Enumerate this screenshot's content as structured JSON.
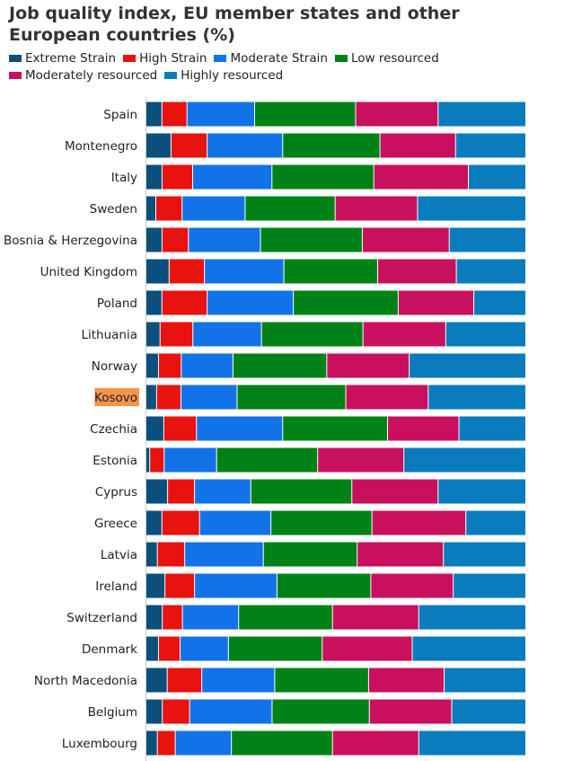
{
  "chart_data": {
    "type": "bar",
    "stacked": true,
    "orientation": "horizontal",
    "normalized_percent": true,
    "title": "Job quality index, EU member states and other European countries (%)",
    "highlighted_category": "Kosovo",
    "highlight_color": "#f7934c",
    "categories": [
      "Spain",
      "Montenegro",
      "Italy",
      "Sweden",
      "Bosnia & Herzegovina",
      "United Kingdom",
      "Poland",
      "Lithuania",
      "Norway",
      "Kosovo",
      "Czechia",
      "Estonia",
      "Cyprus",
      "Greece",
      "Latvia",
      "Ireland",
      "Switzerland",
      "Denmark",
      "North Macedonia",
      "Belgium",
      "Luxembourg"
    ],
    "series": [
      {
        "name": "Extreme Strain",
        "color": "#0b4f7c",
        "values": [
          4.2,
          6.6,
          4.2,
          2.6,
          4.2,
          6.1,
          4.2,
          3.7,
          3.3,
          2.8,
          4.7,
          1.0,
          5.7,
          4.2,
          3.0,
          5.0,
          4.3,
          3.3,
          5.6,
          4.3,
          3.0
        ]
      },
      {
        "name": "High Strain",
        "color": "#e8120f",
        "values": [
          6.6,
          9.5,
          8.0,
          6.9,
          6.9,
          9.3,
          11.9,
          8.6,
          6.0,
          6.4,
          8.6,
          3.8,
          7.1,
          9.9,
          7.2,
          7.8,
          5.3,
          5.7,
          9.1,
          7.2,
          4.7
        ]
      },
      {
        "name": "Moderate Strain",
        "color": "#1273e8",
        "values": [
          17.8,
          19.9,
          20.7,
          16.6,
          18.8,
          20.9,
          22.7,
          18.0,
          13.6,
          14.8,
          22.7,
          13.8,
          14.8,
          18.8,
          20.7,
          21.7,
          14.8,
          12.7,
          19.2,
          21.7,
          14.8
        ]
      },
      {
        "name": "Low resourced",
        "color": "#008216",
        "values": [
          26.6,
          25.6,
          26.6,
          23.7,
          26.6,
          24.7,
          27.6,
          26.6,
          24.7,
          28.6,
          27.6,
          26.6,
          26.6,
          26.6,
          24.7,
          24.7,
          24.7,
          24.7,
          24.7,
          25.6,
          26.6
        ]
      },
      {
        "name": "Moderately resourced",
        "color": "#c9105e",
        "values": [
          21.7,
          19.9,
          24.7,
          21.7,
          22.7,
          20.7,
          19.9,
          21.7,
          21.7,
          21.7,
          18.8,
          22.7,
          22.7,
          24.7,
          22.7,
          21.7,
          22.7,
          23.7,
          19.9,
          21.7,
          22.7
        ]
      },
      {
        "name": "Highly resourced",
        "color": "#0a7cbd",
        "values": [
          23.1,
          18.5,
          15.0,
          28.5,
          20.0,
          18.3,
          13.7,
          21.0,
          30.7,
          25.7,
          17.6,
          32.1,
          23.1,
          15.8,
          21.7,
          19.1,
          28.2,
          29.9,
          21.5,
          19.5,
          28.2
        ]
      }
    ]
  }
}
